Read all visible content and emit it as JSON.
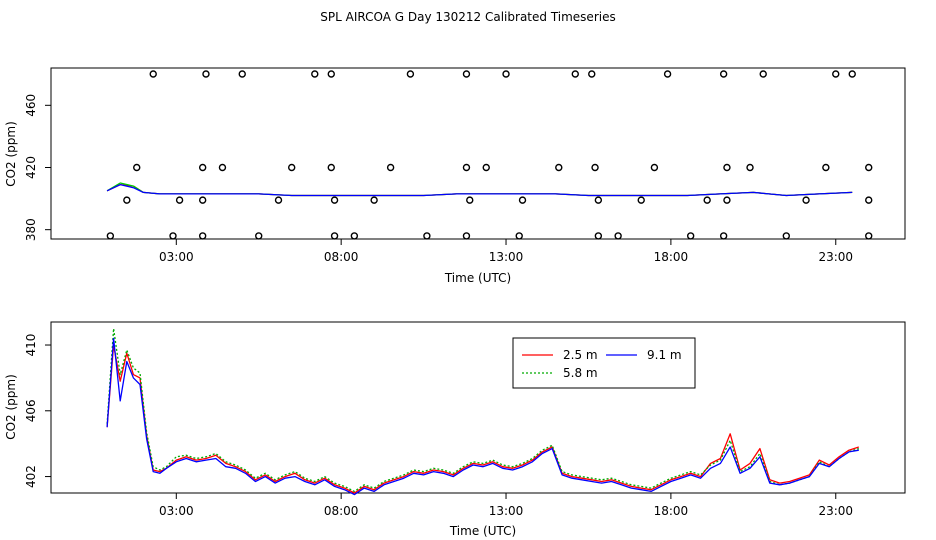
{
  "title": "SPL AIRCOA G  Day 130212  Calibrated Timeseries",
  "chart_data": [
    {
      "type": "scatter+line",
      "xlabel": "Time (UTC)",
      "ylabel": "CO2 (ppm)",
      "x_ticks": [
        {
          "value": 3,
          "label": "03:00"
        },
        {
          "value": 8,
          "label": "08:00"
        },
        {
          "value": 13,
          "label": "13:00"
        },
        {
          "value": 18,
          "label": "18:00"
        },
        {
          "value": 23,
          "label": "23:00"
        }
      ],
      "y_ticks": [
        {
          "value": 380,
          "label": "380"
        },
        {
          "value": 420,
          "label": "420"
        },
        {
          "value": 460,
          "label": "460"
        }
      ],
      "xlim": [
        -0.8,
        25.1
      ],
      "ylim": [
        374,
        484
      ],
      "calibration_levels": [
        {
          "y": 376,
          "x": [
            1.0,
            2.9,
            3.8,
            5.5,
            7.8,
            8.4,
            10.6,
            11.8,
            13.4,
            15.8,
            16.4,
            18.6,
            19.6,
            21.5,
            24.0
          ]
        },
        {
          "y": 399,
          "x": [
            1.5,
            3.1,
            3.8,
            6.1,
            7.8,
            9.0,
            11.9,
            13.5,
            15.8,
            17.1,
            19.1,
            19.7,
            22.1,
            24.0
          ]
        },
        {
          "y": 420,
          "x": [
            1.8,
            3.8,
            4.4,
            6.5,
            7.7,
            9.5,
            11.8,
            12.4,
            14.6,
            15.7,
            17.5,
            19.7,
            20.4,
            22.7,
            24.0
          ]
        },
        {
          "y": 486,
          "x": [
            2.3,
            3.9,
            5.0,
            7.2,
            7.7,
            10.1,
            11.8,
            13.0,
            15.1,
            15.6,
            17.9,
            19.6,
            20.8,
            23.0,
            23.5
          ]
        }
      ],
      "series": [
        {
          "color": "#ff0000",
          "x": [
            0.9,
            1.3,
            1.7,
            2.0,
            2.5,
            3.0,
            3.6,
            4.5,
            5.5,
            6.5,
            7.5,
            8.5,
            9.5,
            10.5,
            11.5,
            12.5,
            13.5,
            14.5,
            15.5,
            16.5,
            17.5,
            18.5,
            19.5,
            20.5,
            21.5,
            22.5,
            23.5
          ],
          "y": [
            405,
            409,
            408,
            404,
            403,
            403,
            403,
            403,
            403,
            402,
            402,
            402,
            402,
            402,
            403,
            403,
            403,
            403,
            402,
            402,
            402,
            402,
            403,
            404,
            402,
            403,
            404
          ]
        },
        {
          "color": "#00cc00",
          "x": [
            0.9,
            1.3,
            1.7,
            2.0,
            2.5,
            3.0,
            3.6,
            4.5,
            5.5,
            6.5,
            7.5,
            8.5,
            9.5,
            10.5,
            11.5,
            12.5,
            13.5,
            14.5,
            15.5,
            16.5,
            17.5,
            18.5,
            19.5,
            20.5,
            21.5,
            22.5,
            23.5
          ],
          "y": [
            405,
            410,
            408,
            404,
            403,
            403,
            403,
            403,
            403,
            402,
            402,
            402,
            402,
            402,
            403,
            403,
            403,
            403,
            402,
            402,
            402,
            402,
            403,
            404,
            402,
            403,
            404
          ]
        },
        {
          "color": "#0000ff",
          "x": [
            0.9,
            1.3,
            1.7,
            2.0,
            2.5,
            3.0,
            3.6,
            4.5,
            5.5,
            6.5,
            7.5,
            8.5,
            9.5,
            10.5,
            11.5,
            12.5,
            13.5,
            14.5,
            15.5,
            16.5,
            17.5,
            18.5,
            19.5,
            20.5,
            21.5,
            22.5,
            23.5
          ],
          "y": [
            405,
            409,
            407,
            404,
            403,
            403,
            403,
            403,
            403,
            402,
            402,
            402,
            402,
            402,
            403,
            403,
            403,
            403,
            402,
            402,
            402,
            402,
            403,
            404,
            402,
            403,
            404
          ]
        }
      ]
    },
    {
      "type": "line",
      "xlabel": "Time (UTC)",
      "ylabel": "CO2 (ppm)",
      "x_ticks": [
        {
          "value": 3,
          "label": "03:00"
        },
        {
          "value": 8,
          "label": "08:00"
        },
        {
          "value": 13,
          "label": "13:00"
        },
        {
          "value": 18,
          "label": "18:00"
        },
        {
          "value": 23,
          "label": "23:00"
        }
      ],
      "y_ticks": [
        {
          "value": 402,
          "label": "402"
        },
        {
          "value": 406,
          "label": "406"
        },
        {
          "value": 410,
          "label": "410"
        }
      ],
      "xlim": [
        -0.8,
        25.1
      ],
      "ylim": [
        401.0,
        411.4
      ],
      "legend": "top-center",
      "series": [
        {
          "name": "2.5 m",
          "color": "#ff0000",
          "dash": "",
          "x": [
            0.9,
            1.1,
            1.3,
            1.5,
            1.7,
            1.9,
            2.1,
            2.3,
            2.5,
            2.7,
            3.0,
            3.3,
            3.6,
            3.9,
            4.2,
            4.5,
            4.8,
            5.1,
            5.4,
            5.7,
            6.0,
            6.3,
            6.6,
            6.9,
            7.2,
            7.5,
            7.8,
            8.1,
            8.4,
            8.7,
            9.0,
            9.3,
            9.6,
            9.9,
            10.2,
            10.5,
            10.8,
            11.1,
            11.4,
            11.7,
            12.0,
            12.3,
            12.6,
            12.9,
            13.2,
            13.5,
            13.8,
            14.1,
            14.4,
            14.7,
            15.0,
            15.3,
            15.6,
            15.9,
            16.2,
            16.5,
            16.8,
            17.1,
            17.4,
            17.7,
            18.0,
            18.3,
            18.6,
            18.9,
            19.2,
            19.5,
            19.8,
            20.1,
            20.4,
            20.7,
            21.0,
            21.3,
            21.6,
            21.9,
            22.2,
            22.5,
            22.8,
            23.1,
            23.4,
            23.7
          ],
          "y": [
            405.0,
            410.0,
            407.8,
            409.5,
            408.2,
            408.0,
            404.5,
            402.4,
            402.3,
            402.5,
            403.0,
            403.2,
            403.0,
            403.1,
            403.3,
            402.8,
            402.6,
            402.3,
            401.8,
            402.1,
            401.7,
            402.0,
            402.2,
            401.8,
            401.6,
            401.9,
            401.5,
            401.3,
            401.0,
            401.4,
            401.2,
            401.6,
            401.8,
            402.0,
            402.3,
            402.2,
            402.4,
            402.3,
            402.1,
            402.5,
            402.8,
            402.7,
            402.9,
            402.6,
            402.5,
            402.7,
            403.0,
            403.5,
            403.8,
            402.2,
            402.0,
            401.9,
            401.8,
            401.7,
            401.8,
            401.6,
            401.4,
            401.3,
            401.2,
            401.5,
            401.8,
            402.0,
            402.2,
            402.0,
            402.8,
            403.1,
            404.6,
            402.4,
            402.8,
            403.7,
            401.8,
            401.6,
            401.7,
            401.9,
            402.1,
            403.0,
            402.7,
            403.2,
            403.6,
            403.8
          ]
        },
        {
          "name": "5.8 m",
          "color": "#00aa00",
          "dash": "2,2",
          "x": [
            0.9,
            1.1,
            1.3,
            1.5,
            1.7,
            1.9,
            2.1,
            2.3,
            2.5,
            2.7,
            3.0,
            3.3,
            3.6,
            3.9,
            4.2,
            4.5,
            4.8,
            5.1,
            5.4,
            5.7,
            6.0,
            6.3,
            6.6,
            6.9,
            7.2,
            7.5,
            7.8,
            8.1,
            8.4,
            8.7,
            9.0,
            9.3,
            9.6,
            9.9,
            10.2,
            10.5,
            10.8,
            11.1,
            11.4,
            11.7,
            12.0,
            12.3,
            12.6,
            12.9,
            13.2,
            13.5,
            13.8,
            14.1,
            14.4,
            14.7,
            15.0,
            15.3,
            15.6,
            15.9,
            16.2,
            16.5,
            16.8,
            17.1,
            17.4,
            17.7,
            18.0,
            18.3,
            18.6,
            18.9,
            19.2,
            19.5,
            19.8,
            20.1,
            20.4,
            20.7,
            21.0,
            21.3,
            21.6,
            21.9,
            22.2,
            22.5,
            22.8,
            23.1,
            23.4,
            23.7
          ],
          "y": [
            405.2,
            411.0,
            408.2,
            409.7,
            408.6,
            408.3,
            404.7,
            402.6,
            402.4,
            402.6,
            403.2,
            403.3,
            403.1,
            403.2,
            403.4,
            402.9,
            402.7,
            402.4,
            401.9,
            402.2,
            401.8,
            402.1,
            402.3,
            401.9,
            401.7,
            402.0,
            401.6,
            401.4,
            401.1,
            401.5,
            401.3,
            401.7,
            401.9,
            402.1,
            402.4,
            402.3,
            402.5,
            402.4,
            402.2,
            402.6,
            402.9,
            402.8,
            403.0,
            402.7,
            402.6,
            402.8,
            403.1,
            403.6,
            403.9,
            402.3,
            402.1,
            402.0,
            401.9,
            401.8,
            401.9,
            401.7,
            401.5,
            401.4,
            401.3,
            401.6,
            401.9,
            402.1,
            402.3,
            402.1,
            402.7,
            403.0,
            404.2,
            402.3,
            402.6,
            403.4,
            401.7,
            401.5,
            401.6,
            401.8,
            402.0,
            402.9,
            402.6,
            403.1,
            403.5,
            403.7
          ]
        },
        {
          "name": "9.1 m",
          "color": "#0000ff",
          "dash": "",
          "x": [
            0.9,
            1.1,
            1.3,
            1.5,
            1.7,
            1.9,
            2.1,
            2.3,
            2.5,
            2.7,
            3.0,
            3.3,
            3.6,
            3.9,
            4.2,
            4.5,
            4.8,
            5.1,
            5.4,
            5.7,
            6.0,
            6.3,
            6.6,
            6.9,
            7.2,
            7.5,
            7.8,
            8.1,
            8.4,
            8.7,
            9.0,
            9.3,
            9.6,
            9.9,
            10.2,
            10.5,
            10.8,
            11.1,
            11.4,
            11.7,
            12.0,
            12.3,
            12.6,
            12.9,
            13.2,
            13.5,
            13.8,
            14.1,
            14.4,
            14.7,
            15.0,
            15.3,
            15.6,
            15.9,
            16.2,
            16.5,
            16.8,
            17.1,
            17.4,
            17.7,
            18.0,
            18.3,
            18.6,
            18.9,
            19.2,
            19.5,
            19.8,
            20.1,
            20.4,
            20.7,
            21.0,
            21.3,
            21.6,
            21.9,
            22.2,
            22.5,
            22.8,
            23.1,
            23.4,
            23.7
          ],
          "y": [
            405.0,
            410.4,
            406.6,
            409.0,
            408.0,
            407.6,
            404.3,
            402.3,
            402.2,
            402.5,
            402.9,
            403.1,
            402.9,
            403.0,
            403.1,
            402.6,
            402.5,
            402.2,
            401.7,
            402.0,
            401.6,
            401.9,
            402.0,
            401.7,
            401.5,
            401.8,
            401.4,
            401.2,
            400.9,
            401.3,
            401.1,
            401.5,
            401.7,
            401.9,
            402.2,
            402.1,
            402.3,
            402.2,
            402.0,
            402.4,
            402.7,
            402.6,
            402.8,
            402.5,
            402.4,
            402.6,
            402.9,
            403.4,
            403.7,
            402.1,
            401.9,
            401.8,
            401.7,
            401.6,
            401.7,
            401.5,
            401.3,
            401.2,
            401.1,
            401.4,
            401.7,
            401.9,
            402.1,
            401.9,
            402.5,
            402.8,
            403.8,
            402.2,
            402.5,
            403.2,
            401.6,
            401.5,
            401.6,
            401.8,
            402.0,
            402.8,
            402.6,
            403.1,
            403.5,
            403.6
          ]
        }
      ]
    }
  ]
}
